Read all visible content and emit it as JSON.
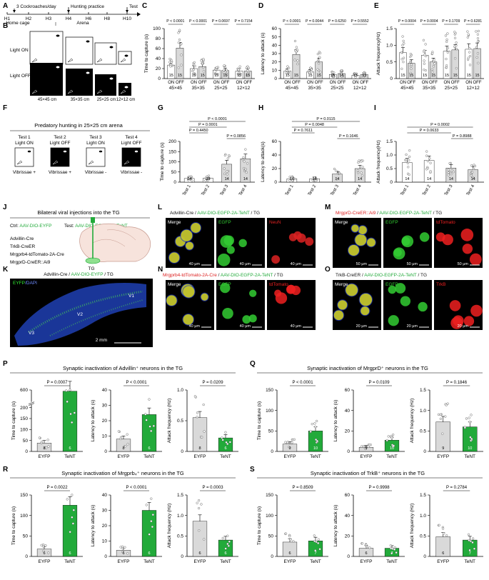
{
  "colors": {
    "dark": "#000000",
    "green": "#22aa3a",
    "gray": "#d9d9d9",
    "white": "#ffffff",
    "neuron_red": "#dd2222",
    "neuron_green": "#33cc33",
    "dapi": "#1a33cc",
    "tdtomato": "#ee2020"
  },
  "panel_labels": [
    "A",
    "B",
    "C",
    "D",
    "E",
    "F",
    "G",
    "H",
    "I",
    "J",
    "K",
    "L",
    "M",
    "N",
    "O",
    "P",
    "Q",
    "R",
    "S"
  ],
  "timeline": {
    "tick_labels": [
      "H1",
      "H2",
      "H3",
      "H4",
      "H6",
      "H8",
      "H10"
    ],
    "note_left": "3 Cockroaches/day",
    "note_mid": "Hunting practice",
    "note_right": "Test",
    "section_home": "Home cage",
    "section_arena": "Arena"
  },
  "arena": {
    "row_labels": [
      "Light ON",
      "Light OFF"
    ],
    "sizes": [
      "45×45 cm",
      "35×35 cm",
      "25×25 cm",
      "12×12 cm"
    ]
  },
  "predatory": {
    "title": "Predatory hunting in 25×25 cm arena",
    "tests": [
      {
        "name": "Test 1",
        "light": "Light ON",
        "vib": "Vibrissae +"
      },
      {
        "name": "Test 2",
        "light": "Light OFF",
        "vib": "Vibrissae +"
      },
      {
        "name": "Test 3",
        "light": "Light ON",
        "vib": "Vibrissae -"
      },
      {
        "name": "Test 4",
        "light": "Light OFF",
        "vib": "Vibrissae -"
      }
    ]
  },
  "viral": {
    "title": "Bilateral viral injections into the TG",
    "ctrl_prefix": "Ctrl: ",
    "ctrl": "AAV-DIO-EYFP",
    "test_prefix": "Test: ",
    "test": "AAV-DIO-EGFP-2A-TeNT",
    "lines": [
      "Advillin-Cre",
      "TrkB-CreER",
      "Mrgprb4-tdTomato-2A-Cre",
      "MrgprD-CreER::Ai9"
    ],
    "tg_label": "TG"
  },
  "micro": {
    "K": {
      "title_a": "Advillin-Cre / ",
      "title_b": "AAV-DIO-EYFP",
      "title_c": " / TG",
      "stain_a": "EYFP",
      "stain_b": "/DAPI",
      "v1": "V1",
      "v2": "V2",
      "v3": "V3",
      "scale": "2 mm"
    },
    "L": {
      "title_a": "Advillin-Cre / ",
      "title_b": "AAV-DIO-EGFP-2A-TeNT",
      "title_c": " / TG",
      "tiles": [
        "Merge",
        "EGFP",
        "NeuN"
      ],
      "scale": "40 μm"
    },
    "M": {
      "title_a": "MrgprD-CreER::Ai9",
      "title_b": " / ",
      "title_c": "AAV-DIO-EGFP-2A-TeNT",
      "title_d": " / TG",
      "tiles": [
        "Merge",
        "EGFP",
        "tdTomato"
      ],
      "scale": "50 μm"
    },
    "N": {
      "title_a": "Mrgprb4-tdTomato-2A-Cre",
      "title_b": " / ",
      "title_c": "AAV-DIO-EGFP-2A-TeNT",
      "title_d": " / TG",
      "tiles": [
        "Merge",
        "EGFP",
        "tdTomato"
      ],
      "scale": "40 μm"
    },
    "O": {
      "title_a": "TrkB-CreER / ",
      "title_b": "AAV-DIO-EGFP-2A-TeNT",
      "title_c": " / TG",
      "tiles": [
        "Merge",
        "EGFP",
        "TrkB"
      ],
      "scale": "20 μm"
    }
  },
  "row_titles": {
    "P": "Synaptic inactivation of Advillin⁺ neurons in the TG",
    "Q": "Synaptic inactivation of MrgprD⁺ neurons in the TG",
    "R": "Synaptic inactivation of Mrgprb₄⁺ neurons in the TG",
    "S": "Synaptic inactivation of TrkB⁺ neurons in the TG"
  },
  "chart_data": [
    {
      "id": "C",
      "type": "bar",
      "ylabel": "Time to capture (s)",
      "ylim": [
        0,
        100
      ],
      "yticks": [
        0,
        20,
        40,
        60,
        80,
        100
      ],
      "groups": [
        "45×45",
        "35×35",
        "25×25",
        "12×12"
      ],
      "bar_labels": [
        "ON",
        "OFF"
      ],
      "values": [
        [
          27,
          61
        ],
        [
          20,
          24
        ],
        [
          17,
          16
        ],
        [
          15,
          15
        ]
      ],
      "n": [
        [
          15,
          15
        ],
        [
          15,
          15
        ],
        [
          15,
          15
        ],
        [
          15,
          15
        ]
      ],
      "pvalues": [
        "P < 0.0001",
        "P < 0.0001",
        "P = 0.0697",
        "P = 0.7154"
      ]
    },
    {
      "id": "D",
      "type": "bar",
      "ylabel": "Latency to attack (s)",
      "ylim": [
        0,
        60
      ],
      "yticks": [
        0,
        10,
        20,
        30,
        40,
        50,
        60
      ],
      "groups": [
        "45×45",
        "35×35",
        "25×25",
        "12×12"
      ],
      "bar_labels": [
        "ON",
        "OFF"
      ],
      "values": [
        [
          9,
          29
        ],
        [
          8,
          20
        ],
        [
          5,
          6
        ],
        [
          4,
          5
        ]
      ],
      "n": [
        [
          15,
          15
        ],
        [
          15,
          15
        ],
        [
          15,
          15
        ],
        [
          15,
          15
        ]
      ],
      "pvalues": [
        "P < 0.0001",
        "P = 0.0044",
        "P = 0.6250",
        "P = 0.5552"
      ]
    },
    {
      "id": "E",
      "type": "bar",
      "ylabel": "Attack frequency(Hz)",
      "ylim": [
        0,
        1.5
      ],
      "yticks": [
        0,
        0.5,
        1.0,
        1.5
      ],
      "groups": [
        "45×45",
        "35×35",
        "25×25",
        "12×12"
      ],
      "bar_labels": [
        "ON",
        "OFF"
      ],
      "values": [
        [
          0.78,
          0.46
        ],
        [
          0.7,
          0.5
        ],
        [
          0.82,
          0.86
        ],
        [
          0.88,
          0.9
        ]
      ],
      "n": [
        [
          15,
          15
        ],
        [
          15,
          15
        ],
        [
          15,
          15
        ],
        [
          15,
          15
        ]
      ],
      "pvalues": [
        "P = 0.0004",
        "P = 0.0004",
        "P = 0.1709",
        "P = 0.6281"
      ]
    },
    {
      "id": "G",
      "type": "bar",
      "ylabel": "Time to capture (s)",
      "ylim": [
        0,
        200
      ],
      "yticks": [
        0,
        50,
        100,
        150,
        200
      ],
      "categories": [
        "Test 1",
        "Test 2",
        "Test 3",
        "Test 4"
      ],
      "values": [
        18,
        20,
        88,
        115
      ],
      "n": [
        14,
        14,
        14,
        14
      ],
      "brackets": [
        {
          "from": 0,
          "to": 3,
          "label": "P < 0.0001"
        },
        {
          "from": 0,
          "to": 2,
          "label": "P = 0.0001"
        },
        {
          "from": 0,
          "to": 1,
          "label": "P = 0.4450"
        },
        {
          "from": 2,
          "to": 3,
          "label": "P = 0.0856"
        }
      ]
    },
    {
      "id": "H",
      "type": "bar",
      "ylabel": "Latency to attack(s)",
      "ylim": [
        0,
        60
      ],
      "yticks": [
        0,
        20,
        40,
        60
      ],
      "categories": [
        "Test 1",
        "Test 2",
        "Test 3",
        "Test 4"
      ],
      "values": [
        5,
        5,
        12,
        20
      ],
      "n": [
        14,
        14,
        14,
        14
      ],
      "brackets": [
        {
          "from": 0,
          "to": 3,
          "label": "P = 0.0115"
        },
        {
          "from": 0,
          "to": 2,
          "label": "P = 0.0048"
        },
        {
          "from": 0,
          "to": 1,
          "label": "P = 0.7611"
        },
        {
          "from": 2,
          "to": 3,
          "label": "P = 0.1646"
        }
      ]
    },
    {
      "id": "I",
      "type": "bar",
      "ylabel": "Attack frequency(Hz)",
      "ylim": [
        0,
        1.5
      ],
      "yticks": [
        0,
        0.5,
        1.0,
        1.5
      ],
      "categories": [
        "Test 1",
        "Test 2",
        "Test 3",
        "Test 4"
      ],
      "values": [
        0.72,
        0.8,
        0.52,
        0.46
      ],
      "n": [
        14,
        14,
        14,
        14
      ],
      "brackets": [
        {
          "from": 0,
          "to": 3,
          "label": "P = 0.0002"
        },
        {
          "from": 0,
          "to": 2,
          "label": "P = 0.0633"
        },
        {
          "from": 2,
          "to": 3,
          "label": "P = 0.8988"
        }
      ]
    },
    {
      "id": "P1",
      "type": "bar",
      "ylabel": "Time to capture (s)",
      "ylim": [
        0,
        600
      ],
      "yticks": [
        0,
        50,
        100,
        150,
        200,
        600
      ],
      "broken": true,
      "break_top": 200,
      "break_low": 500,
      "categories": [
        "EYFP",
        "TeNT"
      ],
      "values": [
        38,
        590
      ],
      "n": [
        8,
        6
      ],
      "pvalue": "P = 0.0007"
    },
    {
      "id": "P2",
      "type": "bar",
      "ylabel": "Latency to attack (s)",
      "ylim": [
        0,
        40
      ],
      "yticks": [
        0,
        10,
        20,
        30,
        40
      ],
      "categories": [
        "EYFP",
        "TeNT"
      ],
      "values": [
        8,
        24
      ],
      "n": [
        8,
        6
      ],
      "pvalue": "P < 0.0001"
    },
    {
      "id": "P3",
      "type": "bar",
      "ylabel": "Attack frequency (Hz)",
      "ylim": [
        0,
        1.0
      ],
      "yticks": [
        0,
        0.5,
        1.0
      ],
      "categories": [
        "EYFP",
        "TeNT"
      ],
      "values": [
        0.55,
        0.22
      ],
      "n": [
        8,
        6
      ],
      "pvalue": "P = 0.0209"
    },
    {
      "id": "Q1",
      "type": "bar",
      "ylabel": "Time to capture (s)",
      "ylim": [
        0,
        150
      ],
      "yticks": [
        0,
        50,
        100,
        150
      ],
      "categories": [
        "EYFP",
        "TeNT"
      ],
      "values": [
        18,
        50
      ],
      "n": [
        9,
        10
      ],
      "pvalue": "P < 0.0001"
    },
    {
      "id": "Q2",
      "type": "bar",
      "ylabel": "Latency to attack (s)",
      "ylim": [
        0,
        60
      ],
      "yticks": [
        0,
        20,
        40,
        60
      ],
      "categories": [
        "EYFP",
        "TeNT"
      ],
      "values": [
        4,
        11
      ],
      "n": [
        9,
        10
      ],
      "pvalue": "P = 0.0109"
    },
    {
      "id": "Q3",
      "type": "bar",
      "ylabel": "Attack frequency (Hz)",
      "ylim": [
        0,
        1.5
      ],
      "yticks": [
        0,
        0.5,
        1.0,
        1.5
      ],
      "categories": [
        "EYFP",
        "TeNT"
      ],
      "values": [
        0.72,
        0.6
      ],
      "n": [
        9,
        10
      ],
      "pvalue": "P = 0.1846"
    },
    {
      "id": "R1",
      "type": "bar",
      "ylabel": "Time to capture (s)",
      "ylim": [
        0,
        150
      ],
      "yticks": [
        0,
        50,
        100,
        150
      ],
      "categories": [
        "EYFP",
        "TeNT"
      ],
      "values": [
        18,
        125
      ],
      "n": [
        6,
        6
      ],
      "pvalue": "P = 0.0022"
    },
    {
      "id": "R2",
      "type": "bar",
      "ylabel": "Latency to attack (s)",
      "ylim": [
        0,
        40
      ],
      "yticks": [
        0,
        10,
        20,
        30,
        40
      ],
      "categories": [
        "EYFP",
        "TeNT"
      ],
      "values": [
        4,
        30
      ],
      "n": [
        6,
        6
      ],
      "pvalue": "P < 0.0001"
    },
    {
      "id": "R3",
      "type": "bar",
      "ylabel": "Attack frequency (Hz)",
      "ylim": [
        0,
        1.5
      ],
      "yticks": [
        0,
        0.5,
        1.0,
        1.5
      ],
      "categories": [
        "EYFP",
        "TeNT"
      ],
      "values": [
        0.86,
        0.4
      ],
      "n": [
        6,
        6
      ],
      "pvalue": "P = 0.0003"
    },
    {
      "id": "S1",
      "type": "bar",
      "ylabel": "Time to capture (s)",
      "ylim": [
        0,
        150
      ],
      "yticks": [
        0,
        50,
        100,
        150
      ],
      "categories": [
        "EYFP",
        "TeNT"
      ],
      "values": [
        35,
        38
      ],
      "n": [
        6,
        7
      ],
      "pvalue": "P = 0.8509"
    },
    {
      "id": "S2",
      "type": "bar",
      "ylabel": "Latency to attack (s)",
      "ylim": [
        0,
        60
      ],
      "yticks": [
        0,
        20,
        40,
        60
      ],
      "categories": [
        "EYFP",
        "TeNT"
      ],
      "values": [
        8,
        8
      ],
      "n": [
        6,
        7
      ],
      "pvalue": "P = 0.9998"
    },
    {
      "id": "S3",
      "type": "bar",
      "ylabel": "Attack frequency (Hz)",
      "ylim": [
        0,
        1.5
      ],
      "yticks": [
        0,
        0.5,
        1.0,
        1.5
      ],
      "categories": [
        "EYFP",
        "TeNT"
      ],
      "values": [
        0.48,
        0.4
      ],
      "n": [
        6,
        7
      ],
      "pvalue": "P = 0.2784"
    }
  ]
}
